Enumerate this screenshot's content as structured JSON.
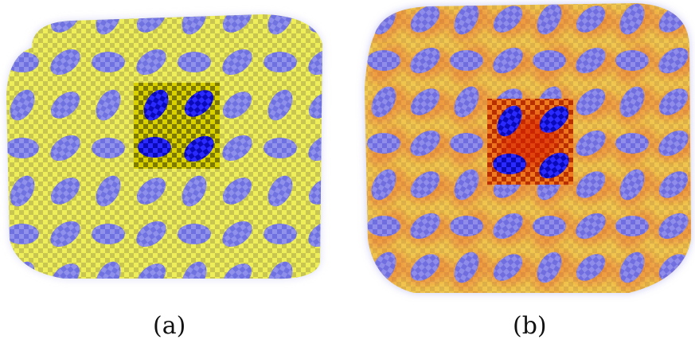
{
  "captions": {
    "a": "(a)",
    "b": "(b)"
  },
  "colors": {
    "yellow": "#e8e648",
    "checker_dark": "#c9c64a",
    "blob": "#6f72ee",
    "blob_dark": "#1515d6",
    "center_dark": "#8f8a00",
    "red": "#e8321e",
    "orange_tint": "#f3a64a"
  }
}
